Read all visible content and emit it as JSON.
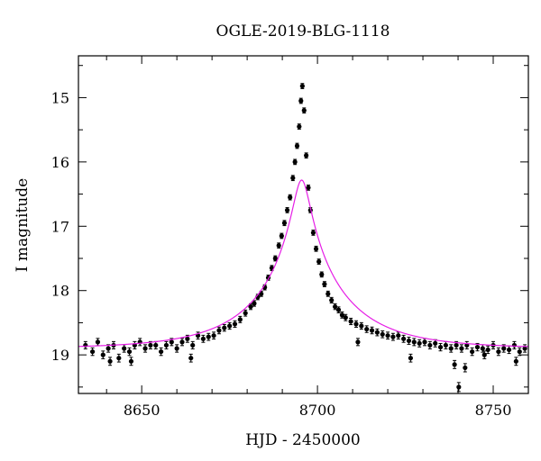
{
  "chart_data": {
    "type": "scatter",
    "title": "OGLE-2019-BLG-1118",
    "xlabel": "HJD - 2450000",
    "ylabel": "I magnitude",
    "xlim": [
      8632,
      8760
    ],
    "ylim": [
      19.6,
      14.35
    ],
    "y_inverted": true,
    "grid": false,
    "x_ticks": [
      8650,
      8700,
      8750
    ],
    "x_tick_labels": [
      "8650",
      "8700",
      "8750"
    ],
    "y_ticks": [
      15,
      16,
      17,
      18,
      19
    ],
    "y_tick_labels": [
      "15",
      "16",
      "17",
      "18",
      "19"
    ],
    "colors": {
      "data": "#000000",
      "model": "#e61ee6"
    },
    "model": {
      "name": "",
      "baseline_mag": 18.9,
      "t0": 8695.5,
      "u0": 0.09,
      "tE": 25.0
    },
    "series": [
      {
        "name": "",
        "x": [
          8634.0,
          8636.0,
          8637.5,
          8639.0,
          8640.5,
          8642.0,
          8643.5,
          8645.0,
          8646.5,
          8648.0,
          8649.5,
          8651.0,
          8652.5,
          8654.0,
          8655.5,
          8657.0,
          8658.5,
          8660.0,
          8661.5,
          8663.0,
          8664.5,
          8666.0,
          8667.5,
          8669.0,
          8670.5,
          8672.0,
          8673.5,
          8675.0,
          8676.5,
          8678.0,
          8679.5,
          8681.0,
          8682.0,
          8683.0,
          8684.0,
          8685.0,
          8686.0,
          8687.0,
          8688.0,
          8689.0,
          8689.8,
          8690.6,
          8691.4,
          8692.2,
          8693.0,
          8693.6,
          8694.2,
          8694.8,
          8695.3,
          8695.7,
          8696.2,
          8696.8,
          8697.4,
          8698.0,
          8698.8,
          8699.6,
          8700.4,
          8701.2,
          8702.0,
          8703.0,
          8704.0,
          8705.0,
          8706.0,
          8707.0,
          8708.0,
          8709.5,
          8711.0,
          8712.5,
          8714.0,
          8715.5,
          8717.0,
          8718.5,
          8720.0,
          8721.5,
          8723.0,
          8724.5,
          8726.0,
          8727.5,
          8729.0,
          8730.5,
          8732.0,
          8733.5,
          8735.0,
          8736.5,
          8738.0,
          8739.5,
          8741.0,
          8742.5,
          8744.0,
          8745.5,
          8747.0,
          8748.5,
          8750.0,
          8751.5,
          8753.0,
          8754.5,
          8756.0,
          8757.5,
          8759.0,
          8641.0,
          8647.0,
          8664.0,
          8711.5,
          8726.5,
          8739.0,
          8740.2,
          8742.0,
          8747.5,
          8756.5
        ],
        "y": [
          18.85,
          18.95,
          18.8,
          19.0,
          18.9,
          18.85,
          19.05,
          18.9,
          18.95,
          18.85,
          18.8,
          18.9,
          18.85,
          18.85,
          18.95,
          18.85,
          18.8,
          18.9,
          18.8,
          18.75,
          18.85,
          18.7,
          18.75,
          18.72,
          18.7,
          18.62,
          18.58,
          18.55,
          18.52,
          18.45,
          18.35,
          18.25,
          18.2,
          18.1,
          18.05,
          17.95,
          17.8,
          17.65,
          17.5,
          17.3,
          17.15,
          16.95,
          16.75,
          16.55,
          16.25,
          16.0,
          15.75,
          15.45,
          15.05,
          14.82,
          15.2,
          15.9,
          16.4,
          16.75,
          17.1,
          17.35,
          17.55,
          17.75,
          17.9,
          18.05,
          18.15,
          18.25,
          18.3,
          18.38,
          18.42,
          18.48,
          18.52,
          18.55,
          18.6,
          18.62,
          18.65,
          18.68,
          18.7,
          18.72,
          18.7,
          18.75,
          18.78,
          18.8,
          18.82,
          18.8,
          18.85,
          18.82,
          18.88,
          18.85,
          18.9,
          18.85,
          18.9,
          18.85,
          18.95,
          18.88,
          18.9,
          18.92,
          18.85,
          18.95,
          18.9,
          18.92,
          18.85,
          18.95,
          18.9,
          19.1,
          19.1,
          19.05,
          18.8,
          19.05,
          19.15,
          19.5,
          19.2,
          19.0,
          19.1
        ]
      }
    ]
  }
}
